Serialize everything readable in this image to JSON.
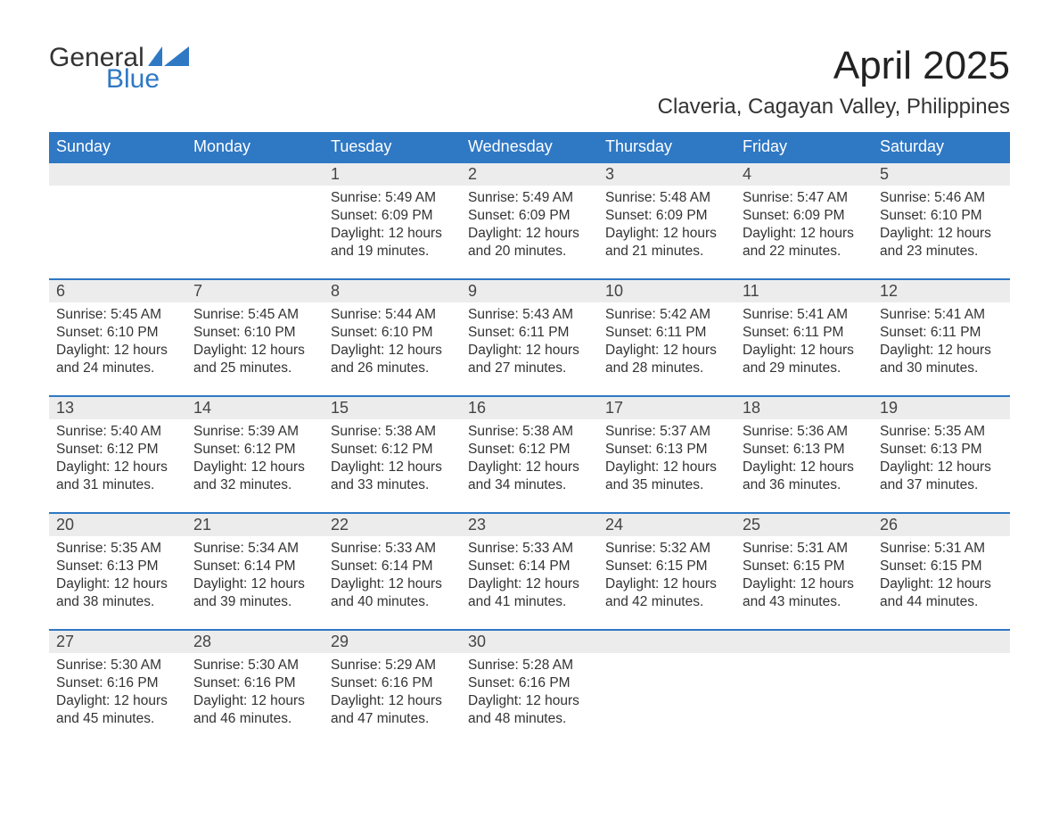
{
  "logo": {
    "word1": "General",
    "word2": "Blue",
    "accent_color": "#2f78c4"
  },
  "title": "April 2025",
  "location": "Claveria, Cagayan Valley, Philippines",
  "style": {
    "header_bg": "#2f78c4",
    "header_text": "#ffffff",
    "daynum_bg": "#ececec",
    "week_border_top": "#2f78c4",
    "body_text": "#333333",
    "page_bg": "#ffffff",
    "title_fontsize": 44,
    "location_fontsize": 24,
    "weekday_fontsize": 18,
    "daynum_fontsize": 18,
    "detail_fontsize": 15.5
  },
  "weekdays": [
    "Sunday",
    "Monday",
    "Tuesday",
    "Wednesday",
    "Thursday",
    "Friday",
    "Saturday"
  ],
  "labels": {
    "sunrise": "Sunrise:",
    "sunset": "Sunset:",
    "daylight": "Daylight:"
  },
  "weeks": [
    [
      {},
      {},
      {
        "n": "1",
        "sunrise": "5:49 AM",
        "sunset": "6:09 PM",
        "daylight": "12 hours and 19 minutes."
      },
      {
        "n": "2",
        "sunrise": "5:49 AM",
        "sunset": "6:09 PM",
        "daylight": "12 hours and 20 minutes."
      },
      {
        "n": "3",
        "sunrise": "5:48 AM",
        "sunset": "6:09 PM",
        "daylight": "12 hours and 21 minutes."
      },
      {
        "n": "4",
        "sunrise": "5:47 AM",
        "sunset": "6:09 PM",
        "daylight": "12 hours and 22 minutes."
      },
      {
        "n": "5",
        "sunrise": "5:46 AM",
        "sunset": "6:10 PM",
        "daylight": "12 hours and 23 minutes."
      }
    ],
    [
      {
        "n": "6",
        "sunrise": "5:45 AM",
        "sunset": "6:10 PM",
        "daylight": "12 hours and 24 minutes."
      },
      {
        "n": "7",
        "sunrise": "5:45 AM",
        "sunset": "6:10 PM",
        "daylight": "12 hours and 25 minutes."
      },
      {
        "n": "8",
        "sunrise": "5:44 AM",
        "sunset": "6:10 PM",
        "daylight": "12 hours and 26 minutes."
      },
      {
        "n": "9",
        "sunrise": "5:43 AM",
        "sunset": "6:11 PM",
        "daylight": "12 hours and 27 minutes."
      },
      {
        "n": "10",
        "sunrise": "5:42 AM",
        "sunset": "6:11 PM",
        "daylight": "12 hours and 28 minutes."
      },
      {
        "n": "11",
        "sunrise": "5:41 AM",
        "sunset": "6:11 PM",
        "daylight": "12 hours and 29 minutes."
      },
      {
        "n": "12",
        "sunrise": "5:41 AM",
        "sunset": "6:11 PM",
        "daylight": "12 hours and 30 minutes."
      }
    ],
    [
      {
        "n": "13",
        "sunrise": "5:40 AM",
        "sunset": "6:12 PM",
        "daylight": "12 hours and 31 minutes."
      },
      {
        "n": "14",
        "sunrise": "5:39 AM",
        "sunset": "6:12 PM",
        "daylight": "12 hours and 32 minutes."
      },
      {
        "n": "15",
        "sunrise": "5:38 AM",
        "sunset": "6:12 PM",
        "daylight": "12 hours and 33 minutes."
      },
      {
        "n": "16",
        "sunrise": "5:38 AM",
        "sunset": "6:12 PM",
        "daylight": "12 hours and 34 minutes."
      },
      {
        "n": "17",
        "sunrise": "5:37 AM",
        "sunset": "6:13 PM",
        "daylight": "12 hours and 35 minutes."
      },
      {
        "n": "18",
        "sunrise": "5:36 AM",
        "sunset": "6:13 PM",
        "daylight": "12 hours and 36 minutes."
      },
      {
        "n": "19",
        "sunrise": "5:35 AM",
        "sunset": "6:13 PM",
        "daylight": "12 hours and 37 minutes."
      }
    ],
    [
      {
        "n": "20",
        "sunrise": "5:35 AM",
        "sunset": "6:13 PM",
        "daylight": "12 hours and 38 minutes."
      },
      {
        "n": "21",
        "sunrise": "5:34 AM",
        "sunset": "6:14 PM",
        "daylight": "12 hours and 39 minutes."
      },
      {
        "n": "22",
        "sunrise": "5:33 AM",
        "sunset": "6:14 PM",
        "daylight": "12 hours and 40 minutes."
      },
      {
        "n": "23",
        "sunrise": "5:33 AM",
        "sunset": "6:14 PM",
        "daylight": "12 hours and 41 minutes."
      },
      {
        "n": "24",
        "sunrise": "5:32 AM",
        "sunset": "6:15 PM",
        "daylight": "12 hours and 42 minutes."
      },
      {
        "n": "25",
        "sunrise": "5:31 AM",
        "sunset": "6:15 PM",
        "daylight": "12 hours and 43 minutes."
      },
      {
        "n": "26",
        "sunrise": "5:31 AM",
        "sunset": "6:15 PM",
        "daylight": "12 hours and 44 minutes."
      }
    ],
    [
      {
        "n": "27",
        "sunrise": "5:30 AM",
        "sunset": "6:16 PM",
        "daylight": "12 hours and 45 minutes."
      },
      {
        "n": "28",
        "sunrise": "5:30 AM",
        "sunset": "6:16 PM",
        "daylight": "12 hours and 46 minutes."
      },
      {
        "n": "29",
        "sunrise": "5:29 AM",
        "sunset": "6:16 PM",
        "daylight": "12 hours and 47 minutes."
      },
      {
        "n": "30",
        "sunrise": "5:28 AM",
        "sunset": "6:16 PM",
        "daylight": "12 hours and 48 minutes."
      },
      {},
      {},
      {}
    ]
  ]
}
